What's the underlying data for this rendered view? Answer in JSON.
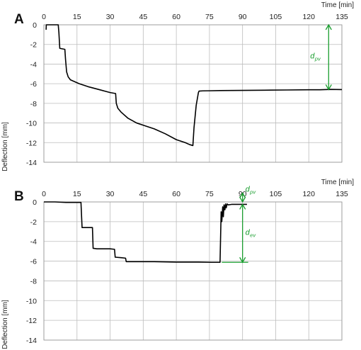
{
  "chart_data": [
    {
      "panel": "A",
      "type": "line",
      "xlabel": "Time [min]",
      "ylabel": "Deflection  [mm]",
      "xlim": [
        0,
        135
      ],
      "ylim": [
        -14,
        0
      ],
      "xticks": [
        0,
        15,
        30,
        45,
        60,
        75,
        90,
        105,
        120,
        135
      ],
      "yticks": [
        0,
        -2,
        -4,
        -6,
        -8,
        -10,
        -12,
        -14
      ],
      "grid": true,
      "series": [
        {
          "x": [
            1,
            1.1,
            1.3,
            6.5,
            6.8,
            7.2,
            9.5,
            9.8,
            10.3,
            11,
            12,
            14,
            16,
            20,
            25,
            30,
            32.5,
            32.8,
            33.5,
            35,
            38,
            42,
            46,
            50,
            55,
            60,
            64,
            66,
            67.5,
            68,
            69,
            70,
            70.3,
            72,
            75,
            80,
            90,
            100,
            110,
            120,
            125,
            130,
            135
          ],
          "y": [
            -0.5,
            0,
            0,
            0,
            -0.8,
            -2.4,
            -2.5,
            -3.5,
            -4.8,
            -5.3,
            -5.6,
            -5.8,
            -6.0,
            -6.3,
            -6.6,
            -6.9,
            -7.0,
            -8.0,
            -8.5,
            -8.9,
            -9.5,
            -10.0,
            -10.3,
            -10.6,
            -11.1,
            -11.7,
            -12.0,
            -12.2,
            -12.3,
            -10.5,
            -8.2,
            -6.9,
            -6.75,
            -6.73,
            -6.72,
            -6.7,
            -6.68,
            -6.66,
            -6.64,
            -6.62,
            -6.62,
            -6.58,
            -6.6
          ]
        }
      ],
      "annotations": [
        {
          "type": "dimension-arrow",
          "label": "d",
          "subscript": "pv",
          "x": 129,
          "y_from": 0,
          "y_to": -6.6
        }
      ]
    },
    {
      "panel": "B",
      "type": "line",
      "xlabel": "Time [min]",
      "ylabel": "Deflection  [mm]",
      "xlim": [
        0,
        135
      ],
      "ylim": [
        -14,
        0
      ],
      "xticks": [
        0,
        15,
        30,
        45,
        60,
        75,
        90,
        105,
        120,
        135
      ],
      "yticks": [
        0,
        -2,
        -4,
        -6,
        -8,
        -10,
        -12,
        -14
      ],
      "grid": true,
      "series": [
        {
          "x": [
            0,
            5,
            10,
            15,
            16.8,
            17.3,
            20,
            22,
            22.3,
            24,
            30,
            32,
            32.3,
            35,
            37,
            37.3,
            40,
            50,
            60,
            70,
            76,
            79.8,
            80.3,
            80.6,
            81,
            81.3,
            81.6,
            82,
            82.3,
            82.6,
            83,
            83.5,
            85,
            87,
            90,
            92
          ],
          "y": [
            0,
            0,
            -0.05,
            -0.05,
            -0.05,
            -2.6,
            -2.6,
            -2.6,
            -4.7,
            -4.75,
            -4.75,
            -4.8,
            -5.6,
            -5.65,
            -5.7,
            -6.05,
            -6.05,
            -6.05,
            -6.1,
            -6.1,
            -6.12,
            -6.12,
            -1.0,
            -2.0,
            -0.5,
            -1.5,
            -0.3,
            -0.8,
            -0.2,
            -0.6,
            -0.2,
            -0.3,
            -0.25,
            -0.25,
            -0.25,
            -0.25
          ]
        }
      ],
      "annotations": [
        {
          "type": "dimension-arrow",
          "label": "d",
          "subscript": "pv",
          "x": 90,
          "y_from": 0.9,
          "y_to": 0
        },
        {
          "type": "dimension-arrow",
          "label": "d",
          "subscript": "ev",
          "x": 90,
          "y_from": -0.25,
          "y_to": -6.12
        }
      ]
    }
  ]
}
